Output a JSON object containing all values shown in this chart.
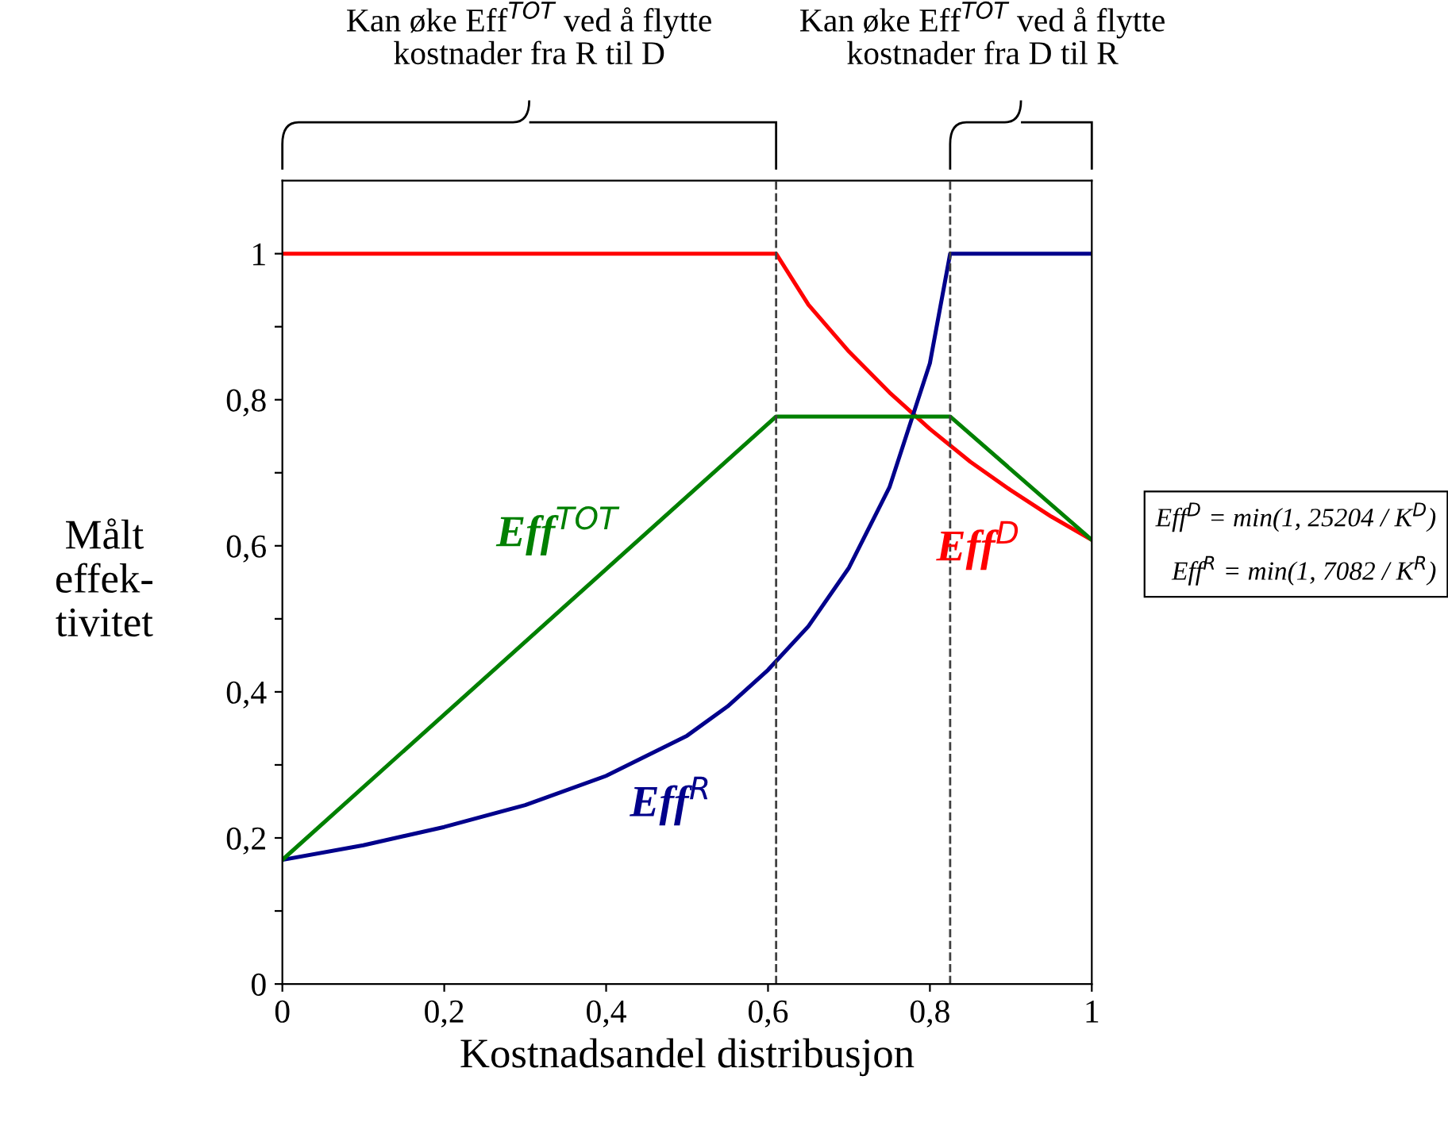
{
  "chart_data": {
    "type": "line",
    "xlabel": "Kostnadsandel distribusjon",
    "ylabel": "Målt\neffek-\ntivitet",
    "xlim": [
      0,
      1
    ],
    "xticks": [
      {
        "value": 0,
        "label": "0"
      },
      {
        "value": 0.2,
        "label": "0,2"
      },
      {
        "value": 0.4,
        "label": "0,4"
      },
      {
        "value": 0.6,
        "label": "0,6"
      },
      {
        "value": 0.8,
        "label": "0,8"
      },
      {
        "value": 1,
        "label": "1"
      }
    ],
    "ylim": [
      0,
      1.1
    ],
    "yticks": [
      {
        "value": 0,
        "label": "0"
      },
      {
        "value": 0.1,
        "label": null
      },
      {
        "value": 0.2,
        "label": "0,2"
      },
      {
        "value": 0.3,
        "label": null
      },
      {
        "value": 0.4,
        "label": "0,4"
      },
      {
        "value": 0.5,
        "label": null
      },
      {
        "value": 0.6,
        "label": "0,6"
      },
      {
        "value": 0.7,
        "label": null
      },
      {
        "value": 0.8,
        "label": "0,8"
      },
      {
        "value": 0.9,
        "label": null
      },
      {
        "value": 1,
        "label": "1"
      }
    ],
    "grid": false,
    "legend": false,
    "marker": "none",
    "line_style": "solid",
    "series": [
      {
        "name": "Eff$^{D}$",
        "color": "#ff0000",
        "x": [
          0,
          0.61,
          0.65,
          0.7,
          0.75,
          0.8,
          0.85,
          0.9,
          0.95,
          1
        ],
        "values": [
          1,
          1,
          0.93,
          0.866,
          0.81,
          0.76,
          0.715,
          0.676,
          0.64,
          0.608
        ]
      },
      {
        "name": "Eff$^{R}$",
        "color": "#00008b",
        "x": [
          0,
          0.1,
          0.2,
          0.3,
          0.4,
          0.5,
          0.55,
          0.6,
          0.65,
          0.7,
          0.75,
          0.8,
          0.825,
          1
        ],
        "values": [
          0.17,
          0.19,
          0.215,
          0.245,
          0.285,
          0.34,
          0.38,
          0.43,
          0.49,
          0.57,
          0.68,
          0.85,
          1,
          1
        ]
      },
      {
        "name": "Eff$^{TOT}$",
        "color": "#008000",
        "x": [
          0,
          0.61,
          0.825,
          1
        ],
        "values": [
          0.17,
          0.777,
          0.777,
          0.608
        ]
      }
    ],
    "ref_lines": [
      {
        "axis": "x",
        "value": 0.61,
        "label": null,
        "color": "#404040",
        "line_style": "dashed"
      },
      {
        "axis": "x",
        "value": 0.825,
        "label": null,
        "color": "#404040",
        "line_style": "dashed"
      }
    ],
    "annotations": [
      "Kan øke Eff$^{TOT}$ ved å flytte\nkostnader fra R til D",
      "Kan øke Eff$^{TOT}$ ved å flytte\nkostnader fra D til R",
      "Eff$^{D}$ = min(1, 25204 / K$^{D}$)\nEff$^{R}$ = min(1, 7082 / K$^{R}$)"
    ]
  }
}
